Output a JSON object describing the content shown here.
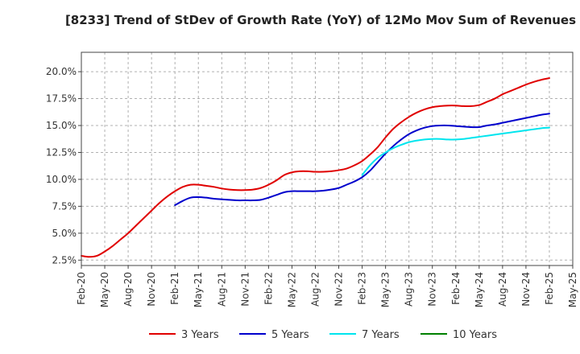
{
  "chart_data": {
    "type": "line",
    "title": "[8233]  Trend of StDev of Growth Rate (YoY) of 12Mo Mov Sum of Revenues",
    "xlabel": "",
    "ylabel": "",
    "ylim": [
      2.0,
      21.8
    ],
    "y_ticks": [
      2.5,
      5.0,
      7.5,
      10.0,
      12.5,
      15.0,
      17.5,
      20.0
    ],
    "y_tick_labels": [
      "2.5%",
      "5.0%",
      "7.5%",
      "10.0%",
      "12.5%",
      "15.0%",
      "17.5%",
      "20.0%"
    ],
    "x_tick_labels": [
      "Feb-20",
      "May-20",
      "Aug-20",
      "Nov-20",
      "Feb-21",
      "May-21",
      "Aug-21",
      "Nov-21",
      "Feb-22",
      "May-22",
      "Aug-22",
      "Nov-22",
      "Feb-23",
      "May-23",
      "Aug-23",
      "Nov-23",
      "Feb-24",
      "May-24",
      "Aug-24",
      "Nov-24",
      "Feb-25",
      "May-25"
    ],
    "x_range_months": [
      0,
      63
    ],
    "grid": true,
    "legend_position": "bottom",
    "series": [
      {
        "name": "3 Years",
        "color": "#e00000",
        "x": [
          0,
          1,
          2,
          3,
          4,
          5,
          6,
          7,
          8,
          9,
          10,
          11,
          12,
          13,
          14,
          15,
          16,
          17,
          18,
          19,
          20,
          21,
          22,
          23,
          24,
          25,
          26,
          27,
          28,
          29,
          30,
          31,
          32,
          33,
          34,
          35,
          36,
          37,
          38,
          39,
          40,
          41,
          42,
          43,
          44,
          45,
          46,
          47,
          48,
          49,
          50,
          51,
          52,
          53,
          54,
          55,
          56,
          57,
          58,
          59,
          60
        ],
        "values": [
          2.9,
          2.8,
          2.9,
          3.3,
          3.8,
          4.4,
          5.0,
          5.7,
          6.4,
          7.1,
          7.8,
          8.4,
          8.9,
          9.3,
          9.5,
          9.5,
          9.4,
          9.3,
          9.15,
          9.05,
          9.0,
          9.0,
          9.05,
          9.2,
          9.5,
          9.9,
          10.4,
          10.65,
          10.75,
          10.75,
          10.7,
          10.7,
          10.75,
          10.85,
          11.0,
          11.3,
          11.7,
          12.3,
          13.0,
          13.9,
          14.7,
          15.3,
          15.8,
          16.2,
          16.5,
          16.7,
          16.8,
          16.85,
          16.85,
          16.8,
          16.8,
          16.9,
          17.2,
          17.5,
          17.9,
          18.2,
          18.5,
          18.8,
          19.05,
          19.25,
          19.4
        ]
      },
      {
        "name": "5 Years",
        "color": "#0000cc",
        "x": [
          12,
          13,
          14,
          15,
          16,
          17,
          18,
          19,
          20,
          21,
          22,
          23,
          24,
          25,
          26,
          27,
          28,
          29,
          30,
          31,
          32,
          33,
          34,
          35,
          36,
          37,
          38,
          39,
          40,
          41,
          42,
          43,
          44,
          45,
          46,
          47,
          48,
          49,
          50,
          51,
          52,
          53,
          54,
          55,
          56,
          57,
          58,
          59,
          60
        ],
        "values": [
          7.6,
          8.0,
          8.3,
          8.35,
          8.3,
          8.2,
          8.15,
          8.1,
          8.05,
          8.05,
          8.05,
          8.1,
          8.3,
          8.55,
          8.8,
          8.9,
          8.9,
          8.9,
          8.9,
          8.95,
          9.05,
          9.2,
          9.5,
          9.8,
          10.2,
          10.8,
          11.6,
          12.4,
          13.1,
          13.7,
          14.2,
          14.55,
          14.8,
          14.95,
          15.0,
          15.0,
          14.95,
          14.9,
          14.85,
          14.85,
          15.0,
          15.1,
          15.25,
          15.4,
          15.55,
          15.7,
          15.85,
          16.0,
          16.1
        ]
      },
      {
        "name": "7 Years",
        "color": "#00e5ee",
        "x": [
          36,
          37,
          38,
          39,
          40,
          41,
          42,
          43,
          44,
          45,
          46,
          47,
          48,
          49,
          50,
          51,
          52,
          53,
          54,
          55,
          56,
          57,
          58,
          59,
          60
        ],
        "values": [
          10.4,
          11.3,
          12.0,
          12.5,
          12.9,
          13.2,
          13.45,
          13.6,
          13.7,
          13.75,
          13.75,
          13.7,
          13.7,
          13.75,
          13.85,
          13.95,
          14.05,
          14.15,
          14.25,
          14.35,
          14.45,
          14.55,
          14.65,
          14.75,
          14.8
        ]
      },
      {
        "name": "10 Years",
        "color": "#008000",
        "x": [],
        "values": []
      }
    ]
  }
}
